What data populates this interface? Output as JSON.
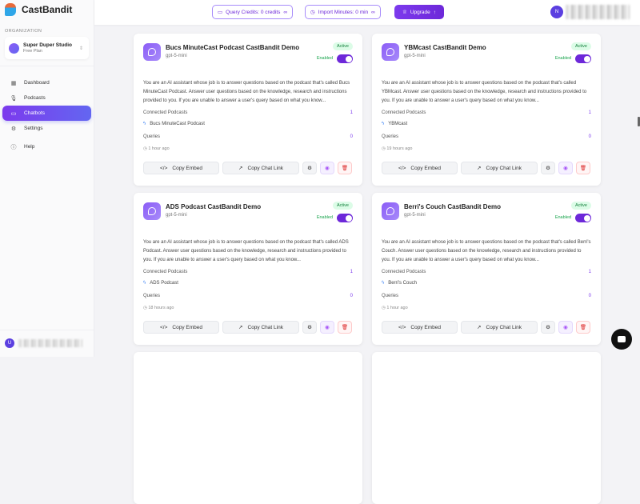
{
  "app": {
    "name": "CastBandit"
  },
  "sidebar": {
    "org_label": "ORGANIZATION",
    "org_name": "Super Duper Studio",
    "org_plan": "Free Plan",
    "items": [
      {
        "label": "Dashboard",
        "icon": "grid-icon"
      },
      {
        "label": "Podcasts",
        "icon": "mic-icon"
      },
      {
        "label": "Chatbots",
        "icon": "chat-icon",
        "active": true
      },
      {
        "label": "Settings",
        "icon": "gear-icon"
      },
      {
        "label": "Help",
        "icon": "help-icon"
      }
    ],
    "user_initial": "U"
  },
  "header": {
    "query_credits": "Query Credits: 0 credits",
    "import_minutes": "Import Minutes: 0 min",
    "infinity": "∞",
    "upgrade": "Upgrade",
    "user_initial": "N"
  },
  "labels": {
    "connected": "Connected Podcasts",
    "queries": "Queries",
    "copy_embed": "Copy Embed",
    "copy_link": "Copy Chat Link",
    "active": "Active",
    "enabled": "Enabled"
  },
  "cards": [
    {
      "title": "Bucs MinuteCast Podcast CastBandit Demo",
      "model": "gpt-5-mini",
      "description": "You are an AI assistant whose job is to answer questions based on the podcast that's called Bucs MinuteCast Podcast. Answer user questions based on the knowledge, research and instructions provided to you. If you are unable to answer a user's query based on what you know...",
      "connected": "1",
      "podcast": "Bucs MinuteCast Podcast",
      "queries": "0",
      "time": "1 hour ago",
      "enabled": true
    },
    {
      "title": "YBMcast CastBandit Demo",
      "model": "gpt-5-mini",
      "description": "You are an AI assistant whose job is to answer questions based on the podcast that's called YBMcast. Answer user questions based on the knowledge, research and instructions provided to you. If you are unable to answer a user's query based on what you know...",
      "connected": "1",
      "podcast": "YBMcast",
      "queries": "0",
      "time": "19 hours ago",
      "enabled": true
    },
    {
      "title": "ADS Podcast CastBandit Demo",
      "model": "gpt-5-mini",
      "description": "You are an AI assistant whose job is to answer questions based on the podcast that's called ADS Podcast. Answer user questions based on the knowledge, research and instructions provided to you. If you are unable to answer a user's query based on what you know...",
      "connected": "1",
      "podcast": "ADS Podcast",
      "queries": "0",
      "time": "18 hours ago",
      "enabled": true
    },
    {
      "title": "Berri's Couch CastBandit Demo",
      "model": "gpt-5-mini",
      "description": "You are an AI assistant whose job is to answer questions based on the podcast that's called Berri's Couch. Answer user questions based on the knowledge, research and instructions provided to you. If you are unable to answer a user's query based on what you know...",
      "connected": "1",
      "podcast": "Berri's Couch",
      "queries": "0",
      "time": "1 hour ago",
      "enabled": true
    }
  ],
  "colors": {
    "accent": "#7c3aed",
    "active_badge": "#dcfce7",
    "danger": "#dc2626"
  }
}
